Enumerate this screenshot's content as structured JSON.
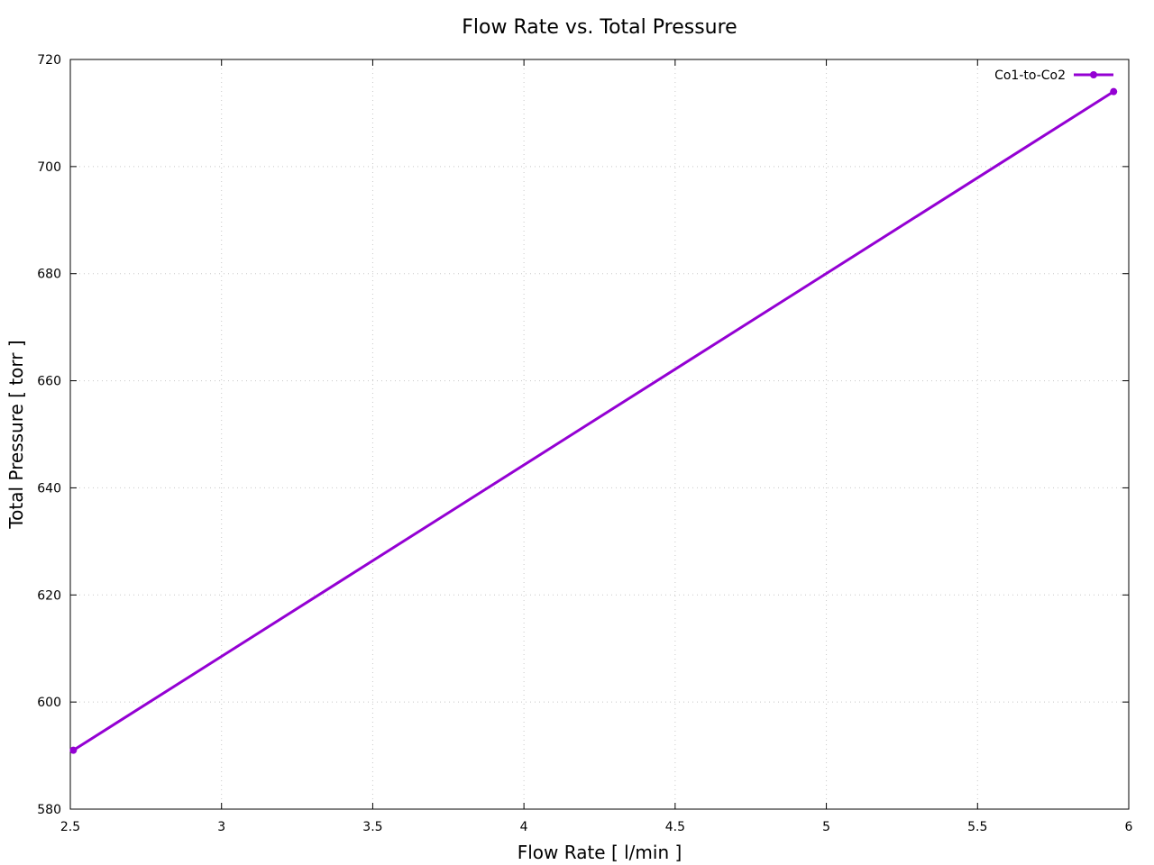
{
  "chart_data": {
    "type": "line",
    "title": "Flow Rate vs. Total Pressure",
    "xlabel": "Flow Rate [ l/min ]",
    "ylabel": "Total Pressure [ torr ]",
    "xlim": [
      2.5,
      6
    ],
    "ylim": [
      580,
      720
    ],
    "xticks": [
      2.5,
      3,
      3.5,
      4,
      4.5,
      5,
      5.5,
      6
    ],
    "xtick_labels": [
      "2.5",
      "3",
      "3.5",
      "4",
      "4.5",
      "5",
      "5.5",
      "6"
    ],
    "yticks": [
      580,
      600,
      620,
      640,
      660,
      680,
      700,
      720
    ],
    "ytick_labels": [
      "580",
      "600",
      "620",
      "640",
      "660",
      "680",
      "700",
      "720"
    ],
    "grid": true,
    "legend_position": "top-right",
    "series": [
      {
        "name": "Co1-to-Co2",
        "color": "#9400d3",
        "marker": "circle",
        "x": [
          2.51,
          5.95
        ],
        "y": [
          591,
          714
        ]
      }
    ]
  }
}
